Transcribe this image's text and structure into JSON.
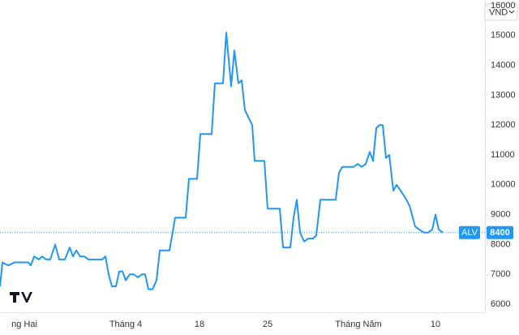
{
  "chart_data": {
    "type": "line",
    "currency": "VND",
    "x": [
      0,
      3,
      10,
      18,
      35,
      38,
      42,
      48,
      52,
      57,
      62,
      68,
      73,
      80,
      86,
      90,
      94,
      99,
      104,
      109,
      126,
      130,
      134,
      138,
      143,
      147,
      151,
      155,
      160,
      165,
      170,
      175,
      179,
      183,
      188,
      193,
      197,
      209,
      216,
      229,
      233,
      243,
      247,
      261,
      265,
      275,
      279,
      285,
      289,
      294,
      298,
      302,
      311,
      314,
      326,
      330,
      345,
      349,
      358,
      362,
      366,
      370,
      375,
      380,
      386,
      390,
      395,
      414,
      418,
      422,
      436,
      441,
      446,
      451,
      456,
      460,
      464,
      468,
      472,
      476,
      480,
      485,
      489,
      494,
      499,
      505,
      512,
      517,
      523,
      528,
      533,
      537,
      541,
      546
    ],
    "series": [
      {
        "name": "ALV",
        "color": "#2196f3",
        "values": [
          6600,
          7400,
          7300,
          7400,
          7400,
          7300,
          7600,
          7500,
          7600,
          7500,
          7500,
          8000,
          7500,
          7500,
          7900,
          7600,
          7800,
          7600,
          7600,
          7500,
          7500,
          7600,
          7000,
          6600,
          6600,
          7100,
          7100,
          6800,
          7000,
          7000,
          6900,
          7000,
          7000,
          6500,
          6500,
          6800,
          7800,
          7800,
          8900,
          8900,
          10200,
          10200,
          11700,
          11700,
          13400,
          13400,
          15100,
          13300,
          14500,
          13400,
          13500,
          12500,
          12000,
          10800,
          10800,
          9200,
          9200,
          7900,
          7900,
          8900,
          9500,
          8400,
          8100,
          8200,
          8200,
          8300,
          9500,
          9500,
          10400,
          10600,
          10600,
          10700,
          10600,
          10700,
          11100,
          10800,
          11900,
          12000,
          12000,
          10900,
          11000,
          9800,
          10000,
          9800,
          9600,
          9300,
          8600,
          8500,
          8400,
          8400,
          8500,
          9000,
          8500,
          8400
        ]
      }
    ],
    "xlim": [
      0,
      595
    ],
    "xticks": [
      {
        "value": 30,
        "label": "ng Hai"
      },
      {
        "value": 155,
        "label": "Tháng 4"
      },
      {
        "value": 246,
        "label": "18"
      },
      {
        "value": 330,
        "label": "25"
      },
      {
        "value": 442,
        "label": "Tháng Năm"
      },
      {
        "value": 537,
        "label": "10"
      }
    ],
    "ylim": [
      5730,
      16190
    ],
    "yticks": [
      6000,
      7000,
      8000,
      9000,
      10000,
      11000,
      12000,
      13000,
      14000,
      15000,
      16000
    ],
    "grid": false
  }
}
